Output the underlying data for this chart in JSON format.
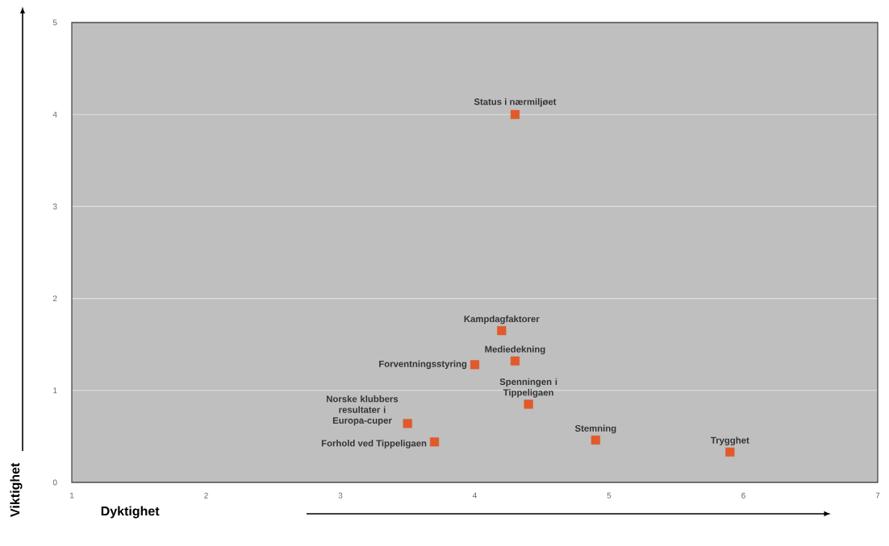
{
  "chart_data": {
    "type": "scatter",
    "xlabel": "Dyktighet",
    "ylabel": "Viktighet",
    "x": [
      4.3,
      4.2,
      4.3,
      4.0,
      4.4,
      3.5,
      3.7,
      4.9,
      5.9
    ],
    "values": [
      4.0,
      1.65,
      1.32,
      1.28,
      0.85,
      0.64,
      0.44,
      0.46,
      0.33
    ],
    "color": "#e05a2b",
    "marker": "square",
    "xlim": [
      1,
      7
    ],
    "ylim": [
      0,
      5
    ],
    "xticks": [
      1,
      2,
      3,
      4,
      5,
      6,
      7
    ],
    "yticks": [
      0,
      1,
      2,
      3,
      4,
      5
    ],
    "grid": "y",
    "annotations": [
      {
        "text": "Status i nærmiljøet",
        "x": 4.3,
        "y": 4.0
      },
      {
        "text": "Kampdagfaktorer",
        "x": 4.2,
        "y": 1.65
      },
      {
        "text": "Mediedekning",
        "x": 4.3,
        "y": 1.32
      },
      {
        "text": "Forventningsstyring",
        "x": 4.0,
        "y": 1.28
      },
      {
        "text": "Spenningen i Tippeligaen",
        "x": 4.4,
        "y": 0.85
      },
      {
        "text": "Norske klubbers resultater i Europa-cuper",
        "x": 3.5,
        "y": 0.64
      },
      {
        "text": "Forhold ved Tippeligaen",
        "x": 3.7,
        "y": 0.44
      },
      {
        "text": "Stemning",
        "x": 4.9,
        "y": 0.46
      },
      {
        "text": "Trygghet",
        "x": 5.9,
        "y": 0.33
      }
    ]
  }
}
